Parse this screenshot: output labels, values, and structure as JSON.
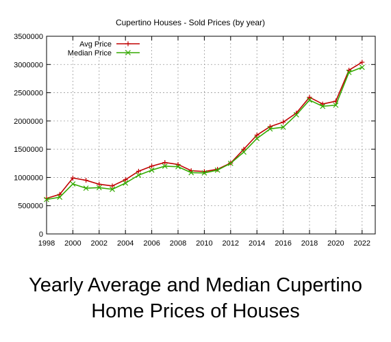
{
  "chart_data": {
    "type": "line",
    "title": "Cupertino Houses - Sold Prices (by year)",
    "xlabel": "",
    "ylabel": "",
    "x": [
      1998,
      1999,
      2000,
      2001,
      2002,
      2003,
      2004,
      2005,
      2006,
      2007,
      2008,
      2009,
      2010,
      2011,
      2012,
      2013,
      2014,
      2015,
      2016,
      2017,
      2018,
      2019,
      2020,
      2021,
      2022
    ],
    "series": [
      {
        "name": "Avg Price",
        "color": "#c00000",
        "marker": "plus",
        "values": [
          630000,
          700000,
          990000,
          950000,
          880000,
          850000,
          960000,
          1110000,
          1200000,
          1265000,
          1230000,
          1120000,
          1105000,
          1145000,
          1255000,
          1500000,
          1750000,
          1900000,
          1980000,
          2140000,
          2420000,
          2300000,
          2350000,
          2900000,
          3040000
        ]
      },
      {
        "name": "Median Price",
        "color": "#33aa00",
        "marker": "cross",
        "values": [
          610000,
          650000,
          885000,
          810000,
          820000,
          790000,
          900000,
          1040000,
          1130000,
          1200000,
          1190000,
          1085000,
          1080000,
          1130000,
          1250000,
          1450000,
          1690000,
          1860000,
          1890000,
          2110000,
          2370000,
          2260000,
          2280000,
          2860000,
          2950000
        ]
      }
    ],
    "xlim": [
      1998,
      2023
    ],
    "ylim": [
      0,
      3500000
    ],
    "xticks": [
      1998,
      2000,
      2002,
      2004,
      2006,
      2008,
      2010,
      2012,
      2014,
      2016,
      2018,
      2020,
      2022
    ],
    "yticks": [
      0,
      500000,
      1000000,
      1500000,
      2000000,
      2500000,
      3000000,
      3500000
    ],
    "grid": true,
    "legend": "top-left"
  },
  "caption": {
    "line1": "Yearly Average and Median Cupertino",
    "line2": "Home Prices of Houses"
  }
}
